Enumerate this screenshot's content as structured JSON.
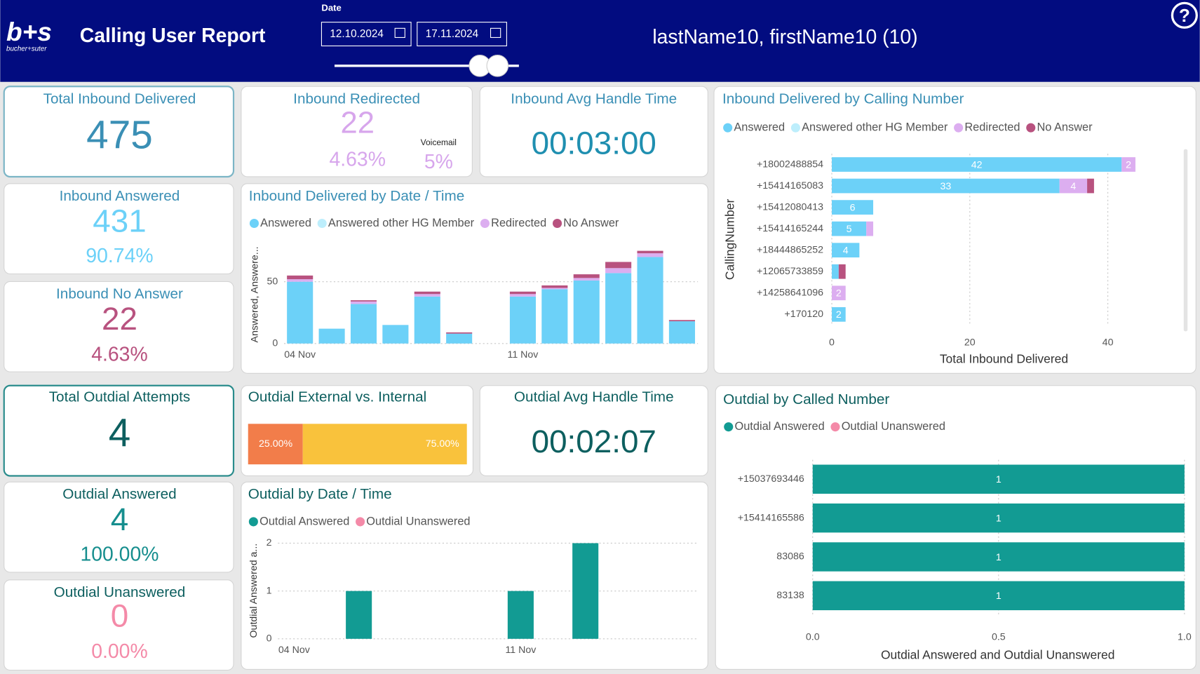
{
  "header": {
    "logo": "b+s",
    "logo_subtitle": "bucher+suter",
    "title": "Calling User Report",
    "date_label": "Date",
    "date_from": "12.10.2024",
    "date_to": "17.11.2024",
    "user": "lastName10, firstName10 (10)",
    "help": "?"
  },
  "kpis": {
    "total_inbound_delivered": {
      "title": "Total Inbound Delivered",
      "value": "475"
    },
    "inbound_redirected": {
      "title": "Inbound Redirected",
      "value": "22",
      "percent": "4.63%",
      "voicemail_label": "Voicemail",
      "voicemail_percent": "5%"
    },
    "inbound_avg_handle_time": {
      "title": "Inbound Avg Handle Time",
      "value": "00:03:00"
    },
    "inbound_answered": {
      "title": "Inbound Answered",
      "value": "431",
      "percent": "90.74%"
    },
    "inbound_no_answer": {
      "title": "Inbound No Answer",
      "value": "22",
      "percent": "4.63%"
    },
    "total_outdial_attempts": {
      "title": "Total Outdial Attempts",
      "value": "4"
    },
    "outdial_avg_handle_time": {
      "title": "Outdial Avg Handle Time",
      "value": "00:02:07"
    },
    "outdial_answered": {
      "title": "Outdial Answered",
      "value": "4",
      "percent": "100.00%"
    },
    "outdial_unanswered": {
      "title": "Outdial Unanswered",
      "value": "0",
      "percent": "0.00%"
    }
  },
  "chart_data": [
    {
      "type": "column",
      "stacked": true,
      "title": "Inbound Delivered by Date / Time",
      "y_label": "Answered, Answere...",
      "categories": [
        "04 Nov",
        null,
        null,
        null,
        null,
        null,
        null,
        "11 Nov",
        null,
        null,
        null,
        null,
        null
      ],
      "series": [
        {
          "name": "Answered",
          "color": "#6cd1f8",
          "values": [
            50,
            12,
            32,
            15,
            38,
            8,
            null,
            38,
            44,
            51,
            57,
            70,
            18
          ]
        },
        {
          "name": "Answered other HG Member",
          "color": "#bdeefc",
          "values": [
            0,
            0,
            0,
            0,
            0,
            0,
            null,
            0,
            0,
            0,
            0,
            0,
            0
          ]
        },
        {
          "name": "Redirected",
          "color": "#dcaef0",
          "values": [
            2,
            0,
            2,
            0,
            2,
            0,
            null,
            2,
            1,
            2,
            4,
            3,
            0
          ]
        },
        {
          "name": "No Answer",
          "color": "#b8527f",
          "values": [
            3,
            0,
            1,
            0,
            2,
            1,
            null,
            2,
            2,
            3,
            5,
            2,
            1
          ]
        }
      ],
      "ylim": [
        0,
        78
      ],
      "yticks": [
        0,
        50
      ],
      "grid": true
    },
    {
      "type": "bar",
      "stacked": true,
      "title": "Inbound Delivered by Calling Number",
      "x_label": "Total Inbound Delivered",
      "y_label": "CallingNumber",
      "categories": [
        "+18002488854",
        "+15414165083",
        "+15412080413",
        "+15414165244",
        "+18444865252",
        "+12065733859",
        "+14258641096",
        "+170120"
      ],
      "series": [
        {
          "name": "Answered",
          "color": "#6cd1f8",
          "values": [
            42,
            33,
            6,
            5,
            4,
            1,
            null,
            2
          ]
        },
        {
          "name": "Answered other HG Member",
          "color": "#bdeefc",
          "values": [
            null,
            null,
            null,
            null,
            null,
            null,
            null,
            null
          ]
        },
        {
          "name": "Redirected",
          "color": "#dcaef0",
          "values": [
            2,
            4,
            null,
            1,
            null,
            null,
            2,
            null
          ]
        },
        {
          "name": "No Answer",
          "color": "#b8527f",
          "values": [
            null,
            1,
            null,
            null,
            null,
            1,
            null,
            null
          ]
        }
      ],
      "xlim": [
        0,
        50
      ],
      "xticks": [
        0,
        20,
        40
      ],
      "grid": true
    },
    {
      "type": "percentbar",
      "stacked": true,
      "title": "Outdial External vs. Internal",
      "series": [
        {
          "color": "#f27d4a",
          "values": [
            25
          ],
          "value_labels": [
            "25.00%"
          ]
        },
        {
          "color": "#f9c23c",
          "values": [
            75
          ],
          "value_labels": [
            "75.00%"
          ]
        }
      ],
      "xlim": [
        0,
        100
      ]
    },
    {
      "type": "column",
      "stacked": true,
      "title": "Outdial by Date / Time",
      "y_label": "Outdial Answered a...",
      "categories": [
        "04 Nov",
        null,
        null,
        null,
        null,
        null,
        null,
        "11 Nov",
        null,
        null,
        null,
        null,
        null
      ],
      "series": [
        {
          "name": "Outdial Answered",
          "color": "#129b93",
          "values": [
            null,
            null,
            1,
            null,
            null,
            null,
            null,
            1,
            null,
            2,
            null,
            null,
            null
          ]
        },
        {
          "name": "Outdial Unanswered",
          "color": "#f48aa8",
          "values": [
            null,
            null,
            null,
            null,
            null,
            null,
            null,
            null,
            null,
            null,
            null,
            null,
            null
          ]
        }
      ],
      "ylim": [
        0,
        2
      ],
      "yticks": [
        0,
        1,
        2
      ],
      "grid": true
    },
    {
      "type": "bar",
      "stacked": true,
      "title": "Outdial by Called Number",
      "x_label": "Outdial Answered and Outdial Unanswered",
      "categories": [
        "+15037693446",
        "+15414165586",
        "83086",
        "83138"
      ],
      "series": [
        {
          "name": "Outdial Answered",
          "color": "#129b93",
          "values": [
            1,
            1,
            1,
            1
          ]
        },
        {
          "name": "Outdial Unanswered",
          "color": "#f48aa8",
          "values": [
            null,
            null,
            null,
            null
          ]
        }
      ],
      "xlim": [
        0,
        1
      ],
      "xticks": [
        {
          "value": 0,
          "label": "0.0"
        },
        {
          "value": 0.5,
          "label": "0.5"
        },
        {
          "value": 1,
          "label": "1.0"
        }
      ],
      "grid": true
    }
  ]
}
